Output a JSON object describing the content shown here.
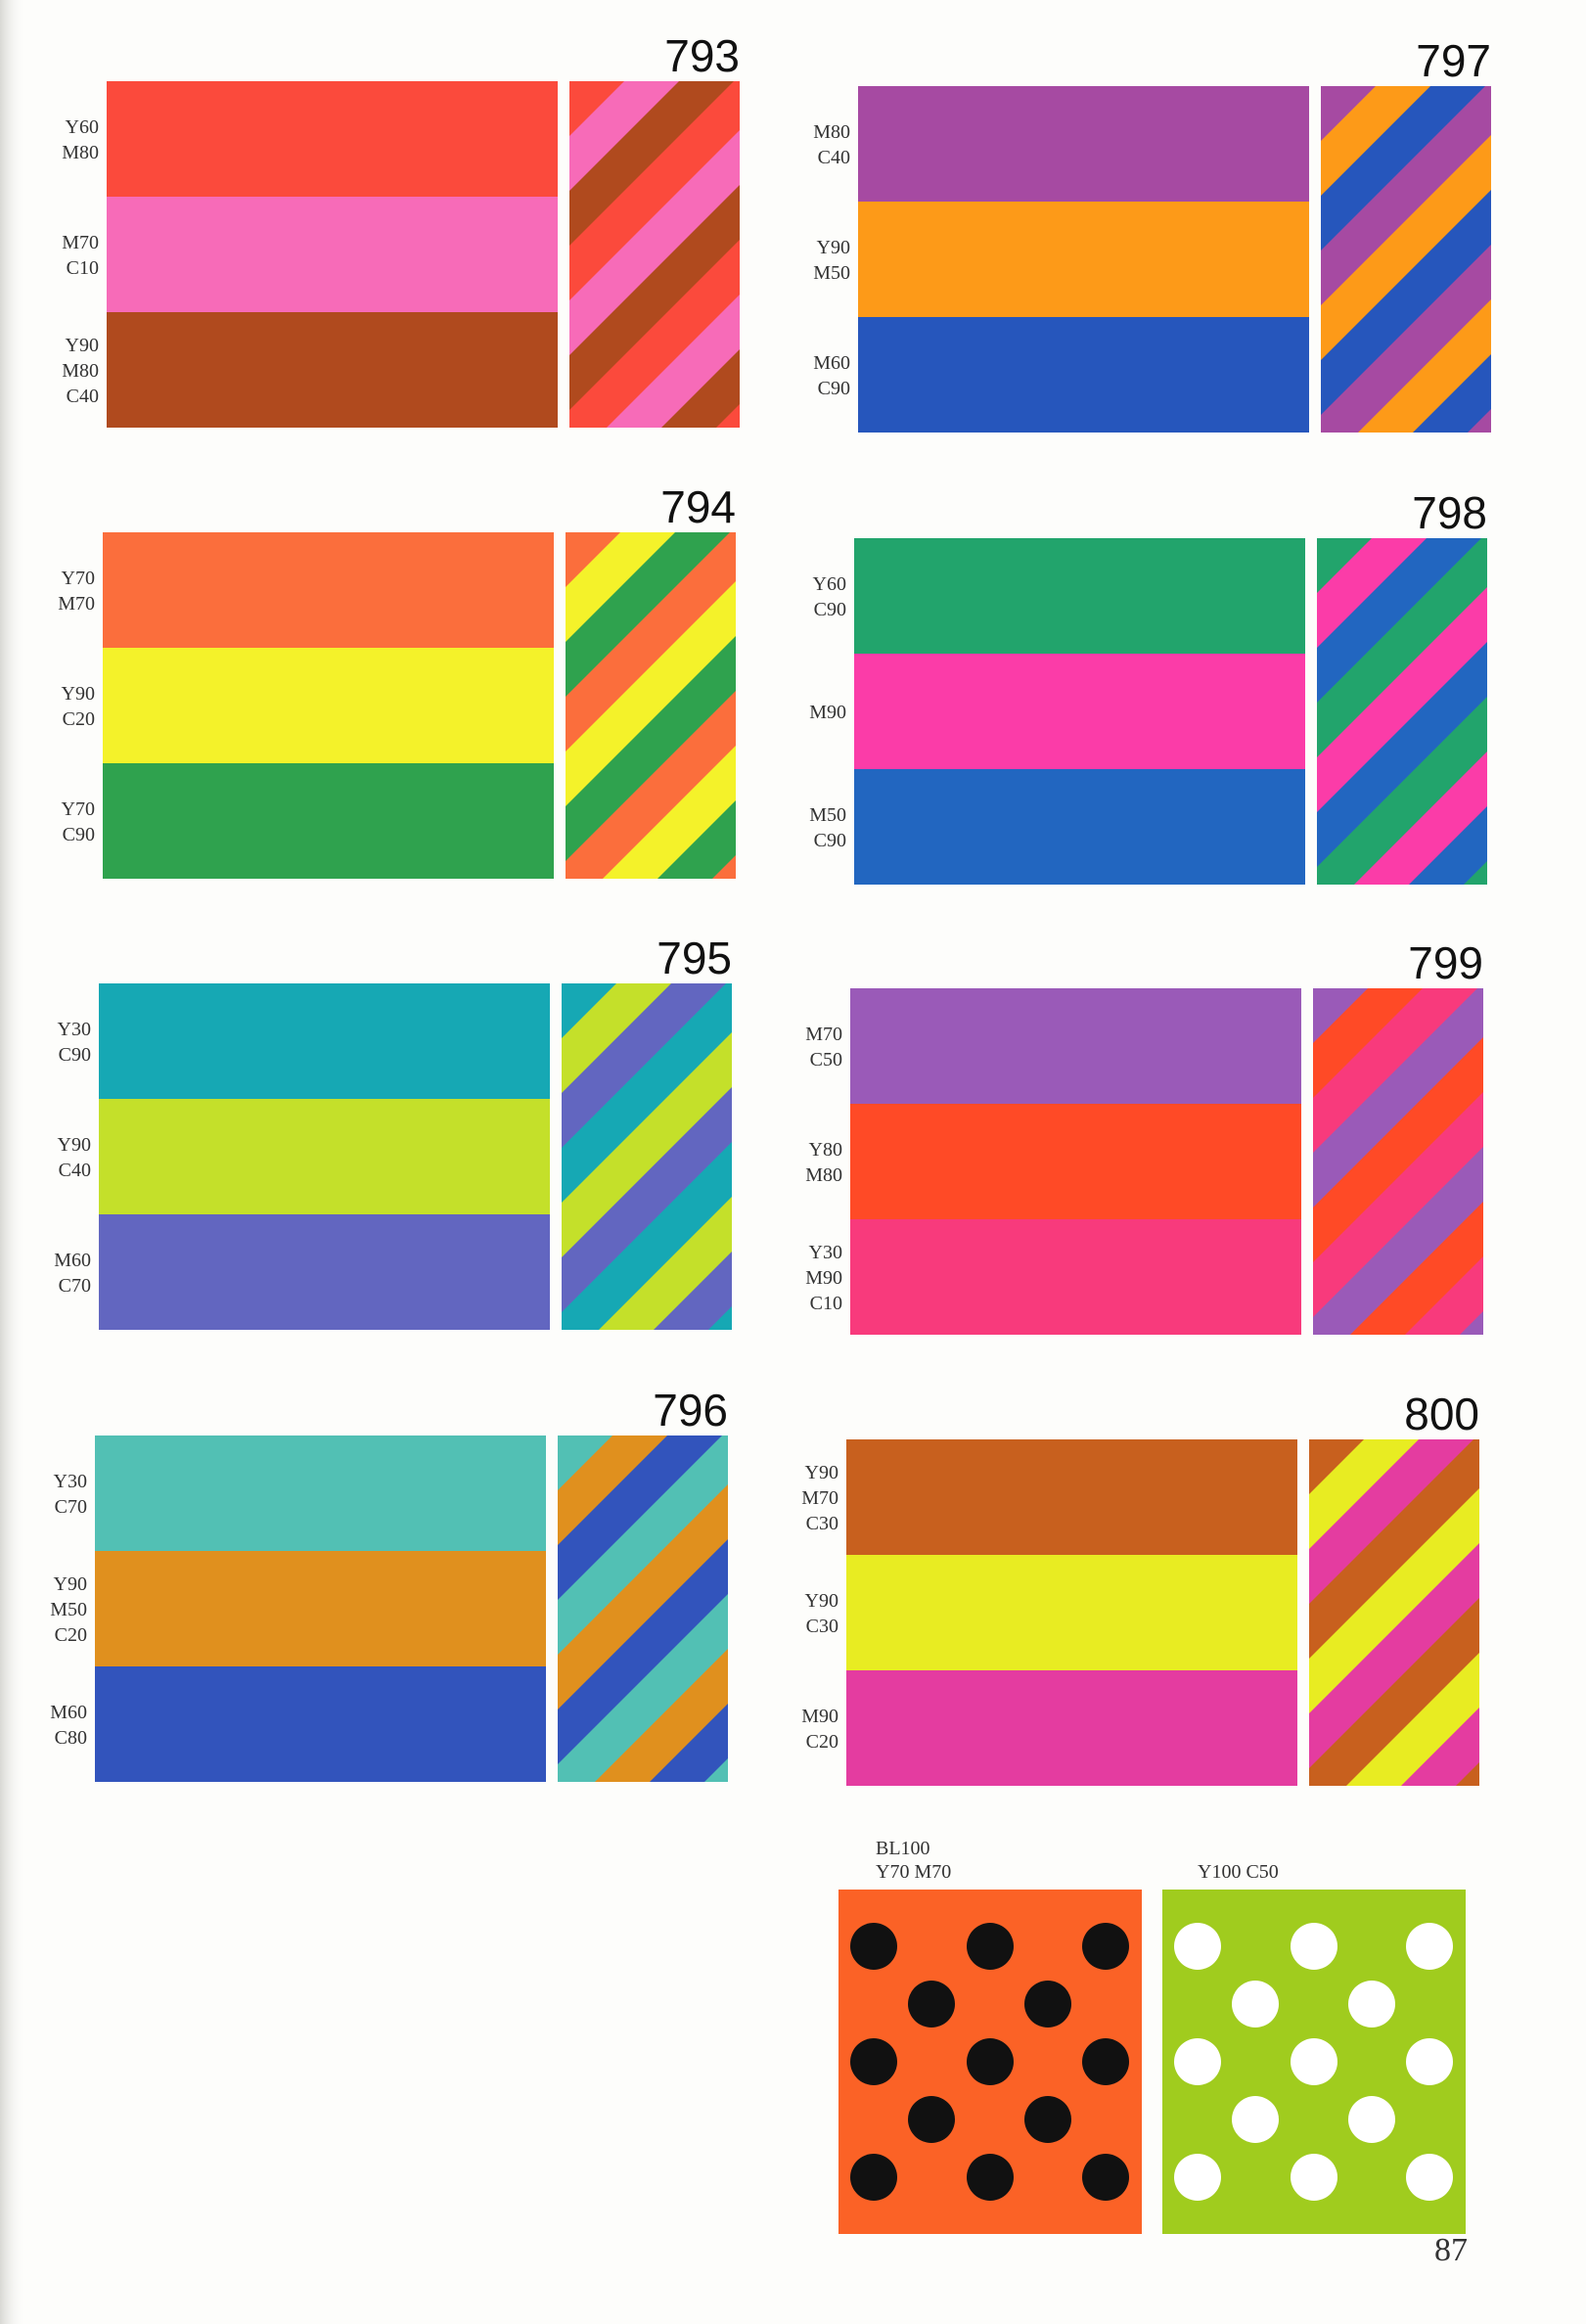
{
  "swatches": [
    {
      "number": "793",
      "bands": [
        {
          "label": [
            "Y60",
            "M80"
          ],
          "color": "#fb4a3c"
        },
        {
          "label": [
            "M70",
            "C10"
          ],
          "color": "#f76bb8"
        },
        {
          "label": [
            "Y90",
            "M80",
            "C40"
          ],
          "color": "#b04a1e"
        }
      ]
    },
    {
      "number": "794",
      "bands": [
        {
          "label": [
            "Y70",
            "M70"
          ],
          "color": "#fb6e3c"
        },
        {
          "label": [
            "Y90",
            "C20"
          ],
          "color": "#f4f22a"
        },
        {
          "label": [
            "Y70",
            "C90"
          ],
          "color": "#2fa24e"
        }
      ]
    },
    {
      "number": "795",
      "bands": [
        {
          "label": [
            "Y30",
            "C90"
          ],
          "color": "#16a8b4"
        },
        {
          "label": [
            "Y90",
            "C40"
          ],
          "color": "#c4e02a"
        },
        {
          "label": [
            "M60",
            "C70"
          ],
          "color": "#6266c0"
        }
      ]
    },
    {
      "number": "796",
      "bands": [
        {
          "label": [
            "Y30",
            "C70"
          ],
          "color": "#52c0b4"
        },
        {
          "label": [
            "Y90",
            "M50",
            "C20"
          ],
          "color": "#e0901e"
        },
        {
          "label": [
            "M60",
            "C80"
          ],
          "color": "#3254bc"
        }
      ]
    },
    {
      "number": "797",
      "bands": [
        {
          "label": [
            "M80",
            "C40"
          ],
          "color": "#a64aa2"
        },
        {
          "label": [
            "Y90",
            "M50"
          ],
          "color": "#fd9a18"
        },
        {
          "label": [
            "M60",
            "C90"
          ],
          "color": "#2656bc"
        }
      ]
    },
    {
      "number": "798",
      "bands": [
        {
          "label": [
            "Y60",
            "C90"
          ],
          "color": "#22a46c"
        },
        {
          "label": [
            "M90"
          ],
          "color": "#fb3ca8"
        },
        {
          "label": [
            "M50",
            "C90"
          ],
          "color": "#2266c0"
        }
      ]
    },
    {
      "number": "799",
      "bands": [
        {
          "label": [
            "M70",
            "C50"
          ],
          "color": "#9a5ab8"
        },
        {
          "label": [
            "Y80",
            "M80"
          ],
          "color": "#ff4a26"
        },
        {
          "label": [
            "Y30",
            "M90",
            "C10"
          ],
          "color": "#f83a7c"
        }
      ]
    },
    {
      "number": "800",
      "bands": [
        {
          "label": [
            "Y90",
            "M70",
            "C30"
          ],
          "color": "#c8601e"
        },
        {
          "label": [
            "Y90",
            "C30"
          ],
          "color": "#e8ec22"
        },
        {
          "label": [
            "M90",
            "C20"
          ],
          "color": "#e43ca0"
        }
      ]
    }
  ],
  "dots": [
    {
      "label": [
        "BL100",
        "Y70  M70"
      ],
      "color": "#fb6226",
      "dot_color": "#111111"
    },
    {
      "label": [
        "Y100  C50"
      ],
      "color": "#a0cc1e",
      "dot_color": "#ffffff"
    }
  ],
  "page_number": "87"
}
